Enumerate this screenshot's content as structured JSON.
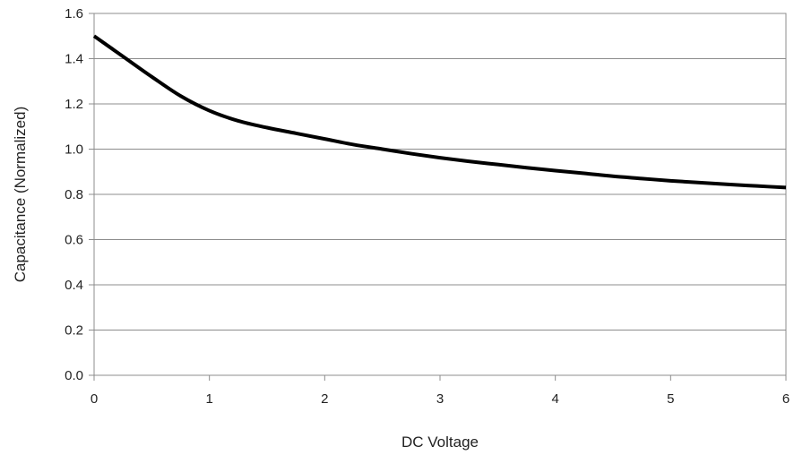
{
  "chart_data": {
    "type": "line",
    "title": "",
    "xlabel": "DC Voltage",
    "ylabel": "Capacitance (Normalized)",
    "xlim": [
      0,
      6
    ],
    "ylim": [
      0,
      1.6
    ],
    "x_ticks": [
      "0",
      "1",
      "2",
      "3",
      "4",
      "5",
      "6"
    ],
    "y_ticks": [
      "0.0",
      "0.2",
      "0.4",
      "0.6",
      "0.8",
      "1.0",
      "1.2",
      "1.4",
      "1.6"
    ],
    "grid": "horizontal",
    "legend": "none",
    "series": [
      {
        "color": "#000000",
        "x": [
          0,
          0.25,
          0.5,
          0.75,
          1.0,
          1.25,
          1.5,
          1.75,
          2.0,
          2.25,
          2.5,
          2.75,
          3.0,
          3.25,
          3.5,
          3.75,
          4.0,
          4.25,
          4.5,
          4.75,
          5.0,
          5.25,
          5.5,
          5.75,
          6.0
        ],
        "y": [
          1.5,
          1.41,
          1.32,
          1.235,
          1.17,
          1.125,
          1.095,
          1.07,
          1.045,
          1.02,
          1.0,
          0.98,
          0.962,
          0.946,
          0.932,
          0.918,
          0.905,
          0.893,
          0.88,
          0.87,
          0.86,
          0.852,
          0.844,
          0.837,
          0.83
        ]
      }
    ]
  }
}
